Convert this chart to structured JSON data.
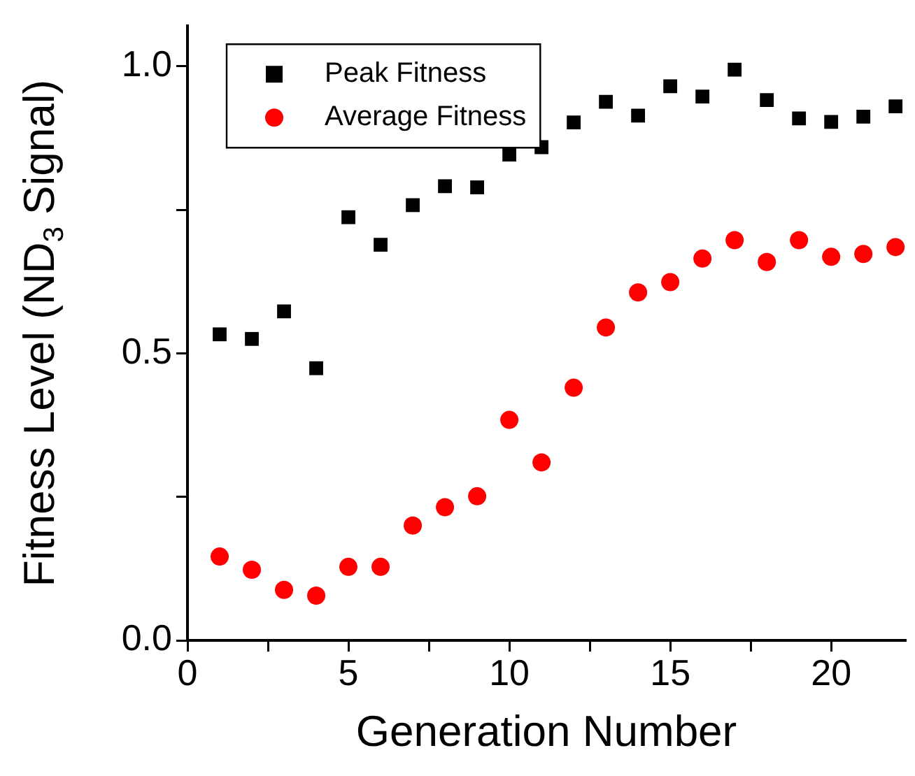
{
  "chart_data": {
    "type": "scatter",
    "xlabel": "Generation Number",
    "ylabel": "Fitness Level (ND$_{3}$ Signal)",
    "x": [
      1,
      2,
      3,
      4,
      5,
      6,
      7,
      8,
      9,
      10,
      11,
      12,
      13,
      14,
      15,
      16,
      17,
      18,
      19,
      20,
      21,
      22
    ],
    "series": [
      {
        "name": "Peak Fitness",
        "color": "#000000",
        "marker": "square",
        "values": [
          0.533,
          0.525,
          0.573,
          0.474,
          0.737,
          0.689,
          0.758,
          0.791,
          0.789,
          0.846,
          0.859,
          0.902,
          0.938,
          0.914,
          0.965,
          0.947,
          0.994,
          0.941,
          0.909,
          0.903,
          0.912,
          0.93
        ]
      },
      {
        "name": "Average Fitness",
        "color": "#ff0000",
        "marker": "circle",
        "values": [
          0.146,
          0.123,
          0.088,
          0.078,
          0.128,
          0.128,
          0.2,
          0.232,
          0.251,
          0.384,
          0.31,
          0.44,
          0.545,
          0.606,
          0.624,
          0.665,
          0.697,
          0.659,
          0.697,
          0.668,
          0.673,
          0.685
        ]
      }
    ],
    "xlim": [
      0,
      22.3
    ],
    "xticks": [
      0,
      {
        "value": 2.5,
        "label": null
      },
      5,
      {
        "value": 7.5,
        "label": null
      },
      10,
      {
        "value": 12.5,
        "label": null
      },
      15,
      {
        "value": 17.5,
        "label": null
      },
      20
    ],
    "ylim": [
      0,
      1.07
    ],
    "yticks": [
      {
        "value": 0,
        "label": "0.0"
      },
      {
        "value": 0.25,
        "label": null
      },
      {
        "value": 0.5,
        "label": "0.5"
      },
      {
        "value": 0.75,
        "label": null
      },
      {
        "value": 1,
        "label": "1.0"
      }
    ],
    "grid": false,
    "legend": "top left"
  }
}
